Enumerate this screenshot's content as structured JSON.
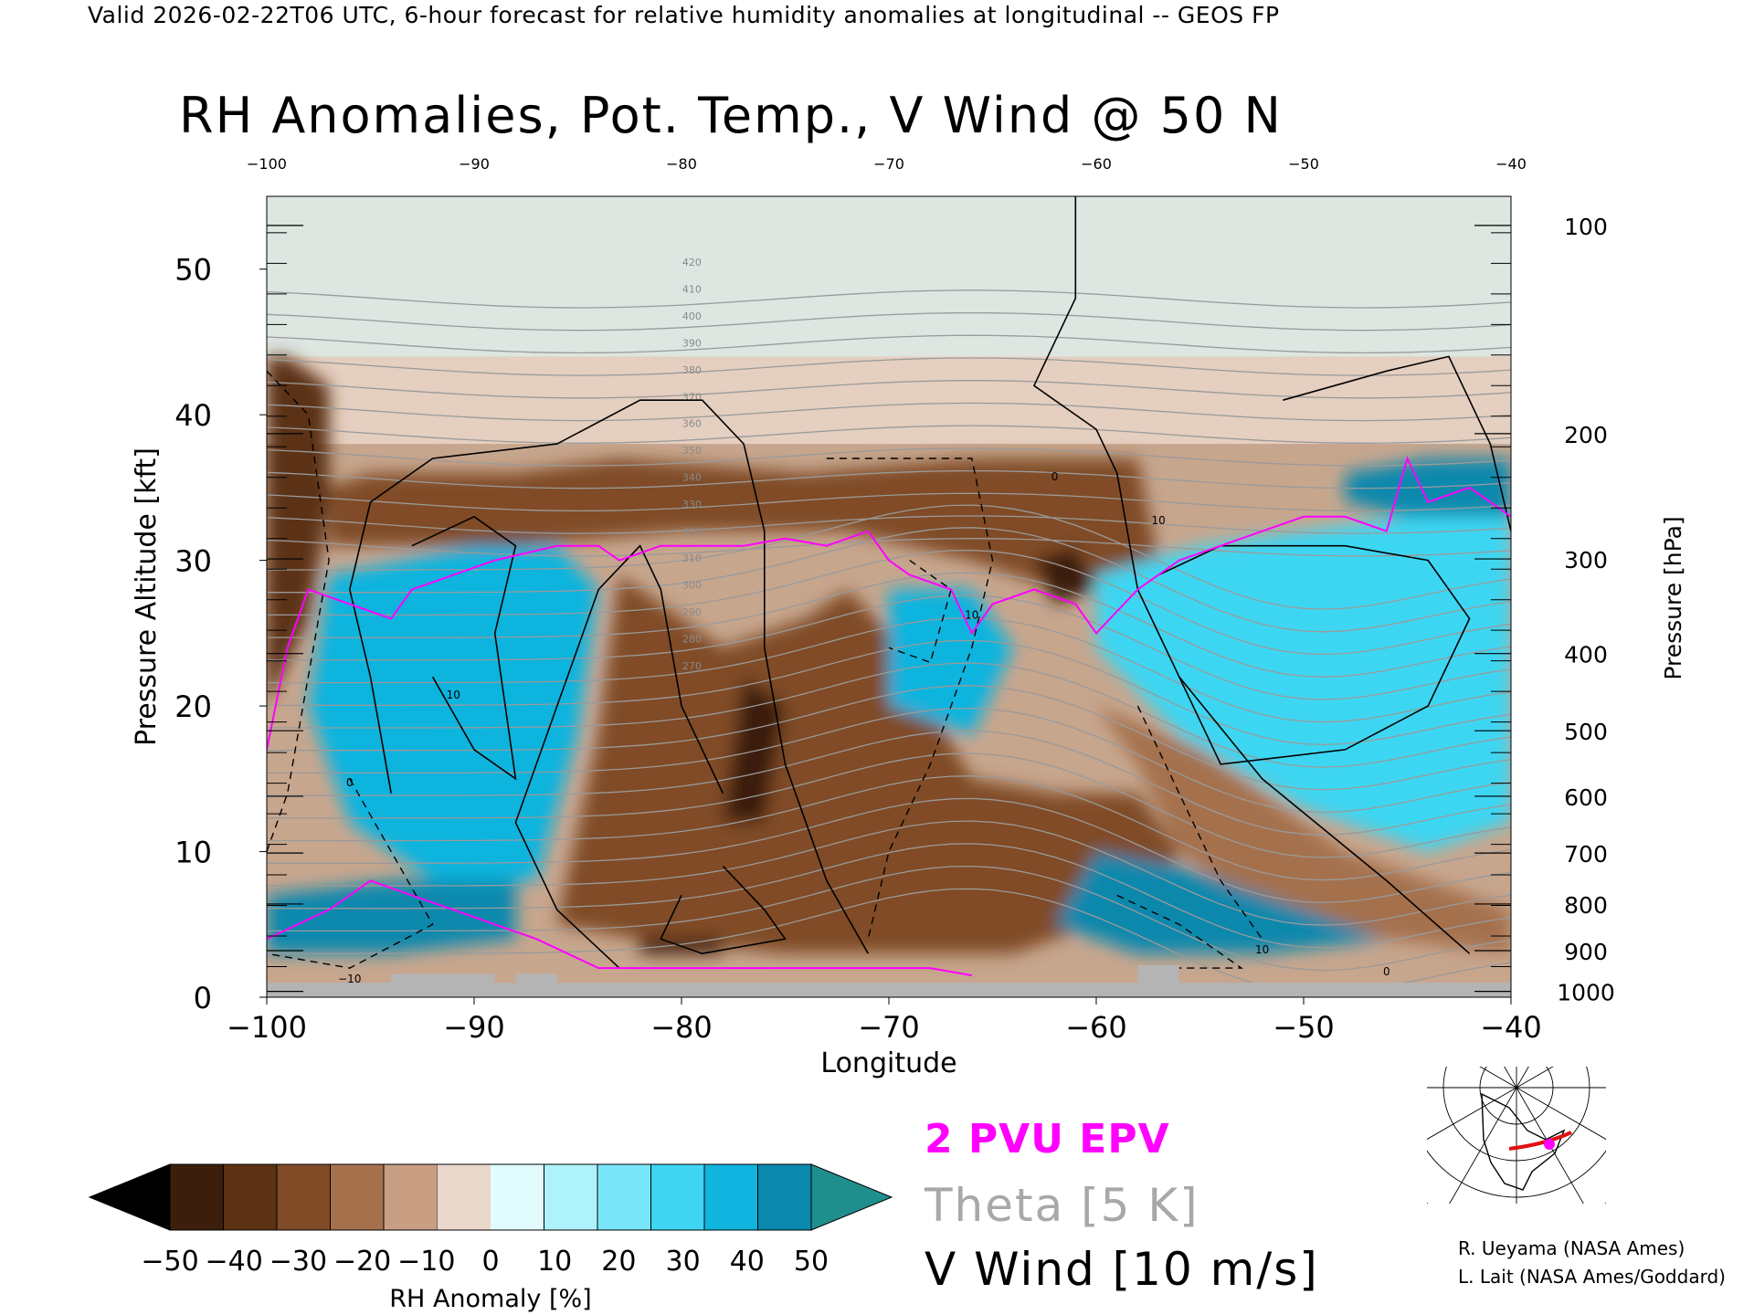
{
  "header": {
    "valid_line": "Valid 2026-02-22T06 UTC, 6-hour forecast for relative humidity anomalies at longitudinal -- GEOS FP"
  },
  "chart_data": {
    "type": "heatmap",
    "title": "RH Anomalies, Pot. Temp., V Wind @ 50 N",
    "xlabel": "Longitude",
    "ylabel": "Pressure Altitude [kft]",
    "y2label": "Pressure [hPa]",
    "xlim": [
      -100,
      -40
    ],
    "ylim": [
      0,
      55
    ],
    "x_ticks": [
      -100,
      -90,
      -80,
      -70,
      -60,
      -50,
      -40
    ],
    "x_tick_labels": [
      "−100",
      "−90",
      "−80",
      "−70",
      "−60",
      "−50",
      "−40"
    ],
    "x_top_tick_labels": [
      "−100",
      "−90",
      "−80",
      "−70",
      "−60",
      "−50",
      "−40"
    ],
    "y_ticks": [
      0,
      10,
      20,
      30,
      40,
      50
    ],
    "y_tick_labels": [
      "0",
      "10",
      "20",
      "30",
      "40",
      "50"
    ],
    "pressure_ticks": [
      {
        "label": "100",
        "kft": 53.0
      },
      {
        "label": "200",
        "kft": 38.7
      },
      {
        "label": "300",
        "kft": 30.1
      },
      {
        "label": "400",
        "kft": 23.6
      },
      {
        "label": "500",
        "kft": 18.3
      },
      {
        "label": "600",
        "kft": 13.8
      },
      {
        "label": "700",
        "kft": 9.9
      },
      {
        "label": "800",
        "kft": 6.4
      },
      {
        "label": "900",
        "kft": 3.2
      },
      {
        "label": "1000",
        "kft": 0.4
      }
    ],
    "colorbar": {
      "label": "RH Anomaly [%]",
      "ticks": [
        "−50",
        "−40",
        "−30",
        "−20",
        "−10",
        "0",
        "10",
        "20",
        "30",
        "40",
        "50"
      ],
      "colors": [
        "#000000",
        "#3b1e0c",
        "#5c3214",
        "#804c28",
        "#a5714d",
        "#c89f83",
        "#ead7cb",
        "#e2fbfd",
        "#aef2fb",
        "#78e6f8",
        "#3ed6f2",
        "#10b4de",
        "#0a88ad",
        "#1e8f8c"
      ]
    },
    "rh_regions": [
      {
        "shape": "dry",
        "value": -40,
        "points": [
          [
            -100,
            20
          ],
          [
            -98,
            26
          ],
          [
            -97,
            34
          ],
          [
            -97,
            42
          ],
          [
            -99,
            44
          ],
          [
            -100,
            44
          ]
        ]
      },
      {
        "shape": "dry",
        "value": -30,
        "points": [
          [
            -97,
            35
          ],
          [
            -95,
            36
          ],
          [
            -88,
            36
          ],
          [
            -83,
            37
          ],
          [
            -74,
            36
          ],
          [
            -66,
            37
          ],
          [
            -58,
            37
          ],
          [
            -57,
            30
          ],
          [
            -62,
            28
          ],
          [
            -66,
            30
          ],
          [
            -72,
            32
          ],
          [
            -80,
            32
          ],
          [
            -88,
            31
          ],
          [
            -94,
            31
          ],
          [
            -97,
            31
          ]
        ]
      },
      {
        "shape": "dry",
        "value": -30,
        "points": [
          [
            -86,
            5
          ],
          [
            -84,
            18
          ],
          [
            -83,
            29
          ],
          [
            -80,
            26
          ],
          [
            -78,
            24
          ],
          [
            -74,
            26
          ],
          [
            -72,
            28
          ],
          [
            -70,
            25
          ],
          [
            -68,
            20
          ],
          [
            -66,
            15
          ],
          [
            -62,
            14
          ],
          [
            -58,
            14
          ],
          [
            -56,
            10
          ],
          [
            -58,
            6
          ],
          [
            -62,
            4
          ],
          [
            -64,
            3
          ],
          [
            -75,
            3
          ],
          [
            -82,
            4
          ]
        ]
      },
      {
        "shape": "dry",
        "value": -50,
        "points": [
          [
            -78,
            12
          ],
          [
            -76,
            12
          ],
          [
            -75,
            20
          ],
          [
            -77,
            22
          ]
        ]
      },
      {
        "shape": "dry",
        "value": -50,
        "points": [
          [
            -63,
            30
          ],
          [
            -61,
            31
          ],
          [
            -60,
            28
          ],
          [
            -62,
            27
          ]
        ]
      },
      {
        "shape": "dry",
        "value": -50,
        "points": [
          [
            -82,
            3
          ],
          [
            -78,
            3
          ],
          [
            -78,
            4
          ],
          [
            -82,
            4
          ]
        ]
      },
      {
        "shape": "dry",
        "value": -20,
        "points": [
          [
            -95,
            25
          ],
          [
            -93,
            27
          ],
          [
            -91,
            20
          ],
          [
            -92,
            15
          ],
          [
            -94,
            18
          ]
        ]
      },
      {
        "shape": "dry",
        "value": -20,
        "points": [
          [
            -60,
            20
          ],
          [
            -55,
            17
          ],
          [
            -48,
            10
          ],
          [
            -42,
            7
          ],
          [
            -40,
            6
          ],
          [
            -40,
            3
          ],
          [
            -46,
            4
          ],
          [
            -52,
            6
          ],
          [
            -56,
            10
          ],
          [
            -58,
            16
          ]
        ]
      },
      {
        "shape": "wet",
        "value": 30,
        "points": [
          [
            -97,
            29
          ],
          [
            -90,
            31
          ],
          [
            -86,
            31
          ],
          [
            -84,
            28
          ],
          [
            -85,
            18
          ],
          [
            -87,
            8
          ],
          [
            -92,
            8
          ],
          [
            -96,
            12
          ],
          [
            -98,
            20
          ]
        ]
      },
      {
        "shape": "wet",
        "value": 20,
        "points": [
          [
            -60,
            29
          ],
          [
            -55,
            31
          ],
          [
            -45,
            33
          ],
          [
            -40,
            34
          ],
          [
            -40,
            12
          ],
          [
            -44,
            10
          ],
          [
            -50,
            13
          ],
          [
            -56,
            18
          ],
          [
            -60,
            24
          ]
        ]
      },
      {
        "shape": "wet",
        "value": 40,
        "points": [
          [
            -60,
            10
          ],
          [
            -56,
            9
          ],
          [
            -50,
            6
          ],
          [
            -46,
            4
          ],
          [
            -52,
            3
          ],
          [
            -58,
            3
          ],
          [
            -62,
            5
          ]
        ]
      },
      {
        "shape": "wet",
        "value": 40,
        "points": [
          [
            -100,
            3
          ],
          [
            -94,
            3
          ],
          [
            -88,
            4
          ],
          [
            -88,
            8
          ],
          [
            -94,
            8
          ],
          [
            -100,
            7
          ]
        ]
      },
      {
        "shape": "wet",
        "value": 30,
        "points": [
          [
            -70,
            28
          ],
          [
            -66,
            28
          ],
          [
            -64,
            24
          ],
          [
            -66,
            18
          ],
          [
            -70,
            20
          ]
        ]
      },
      {
        "shape": "wet",
        "value": 40,
        "points": [
          [
            -48,
            36
          ],
          [
            -44,
            37
          ],
          [
            -40,
            37
          ],
          [
            -40,
            33
          ],
          [
            -45,
            33
          ],
          [
            -48,
            34
          ]
        ]
      }
    ],
    "annotations": {
      "theta_labels": [
        "420",
        "410",
        "400",
        "390",
        "380",
        "370",
        "360",
        "350",
        "340",
        "330",
        "320",
        "310",
        "300",
        "290",
        "280",
        "270"
      ],
      "wind_labels": [
        "0",
        "10",
        "−10"
      ]
    },
    "legend": {
      "items": [
        {
          "label": "2 PVU EPV",
          "color": "#ff00ff"
        },
        {
          "label": "Theta [5 K]",
          "color": "#a0a0a0"
        },
        {
          "label": "V Wind [10 m/s]",
          "color": "#000000"
        }
      ]
    },
    "grid": false,
    "legend_placement": "bottom-center"
  },
  "map_inset": {
    "marker_color": "#ff00ff",
    "section_color": "#e01010"
  },
  "credits": {
    "line1": "R. Ueyama (NASA Ames)",
    "line2": "L. Lait (NASA Ames/Goddard)"
  }
}
